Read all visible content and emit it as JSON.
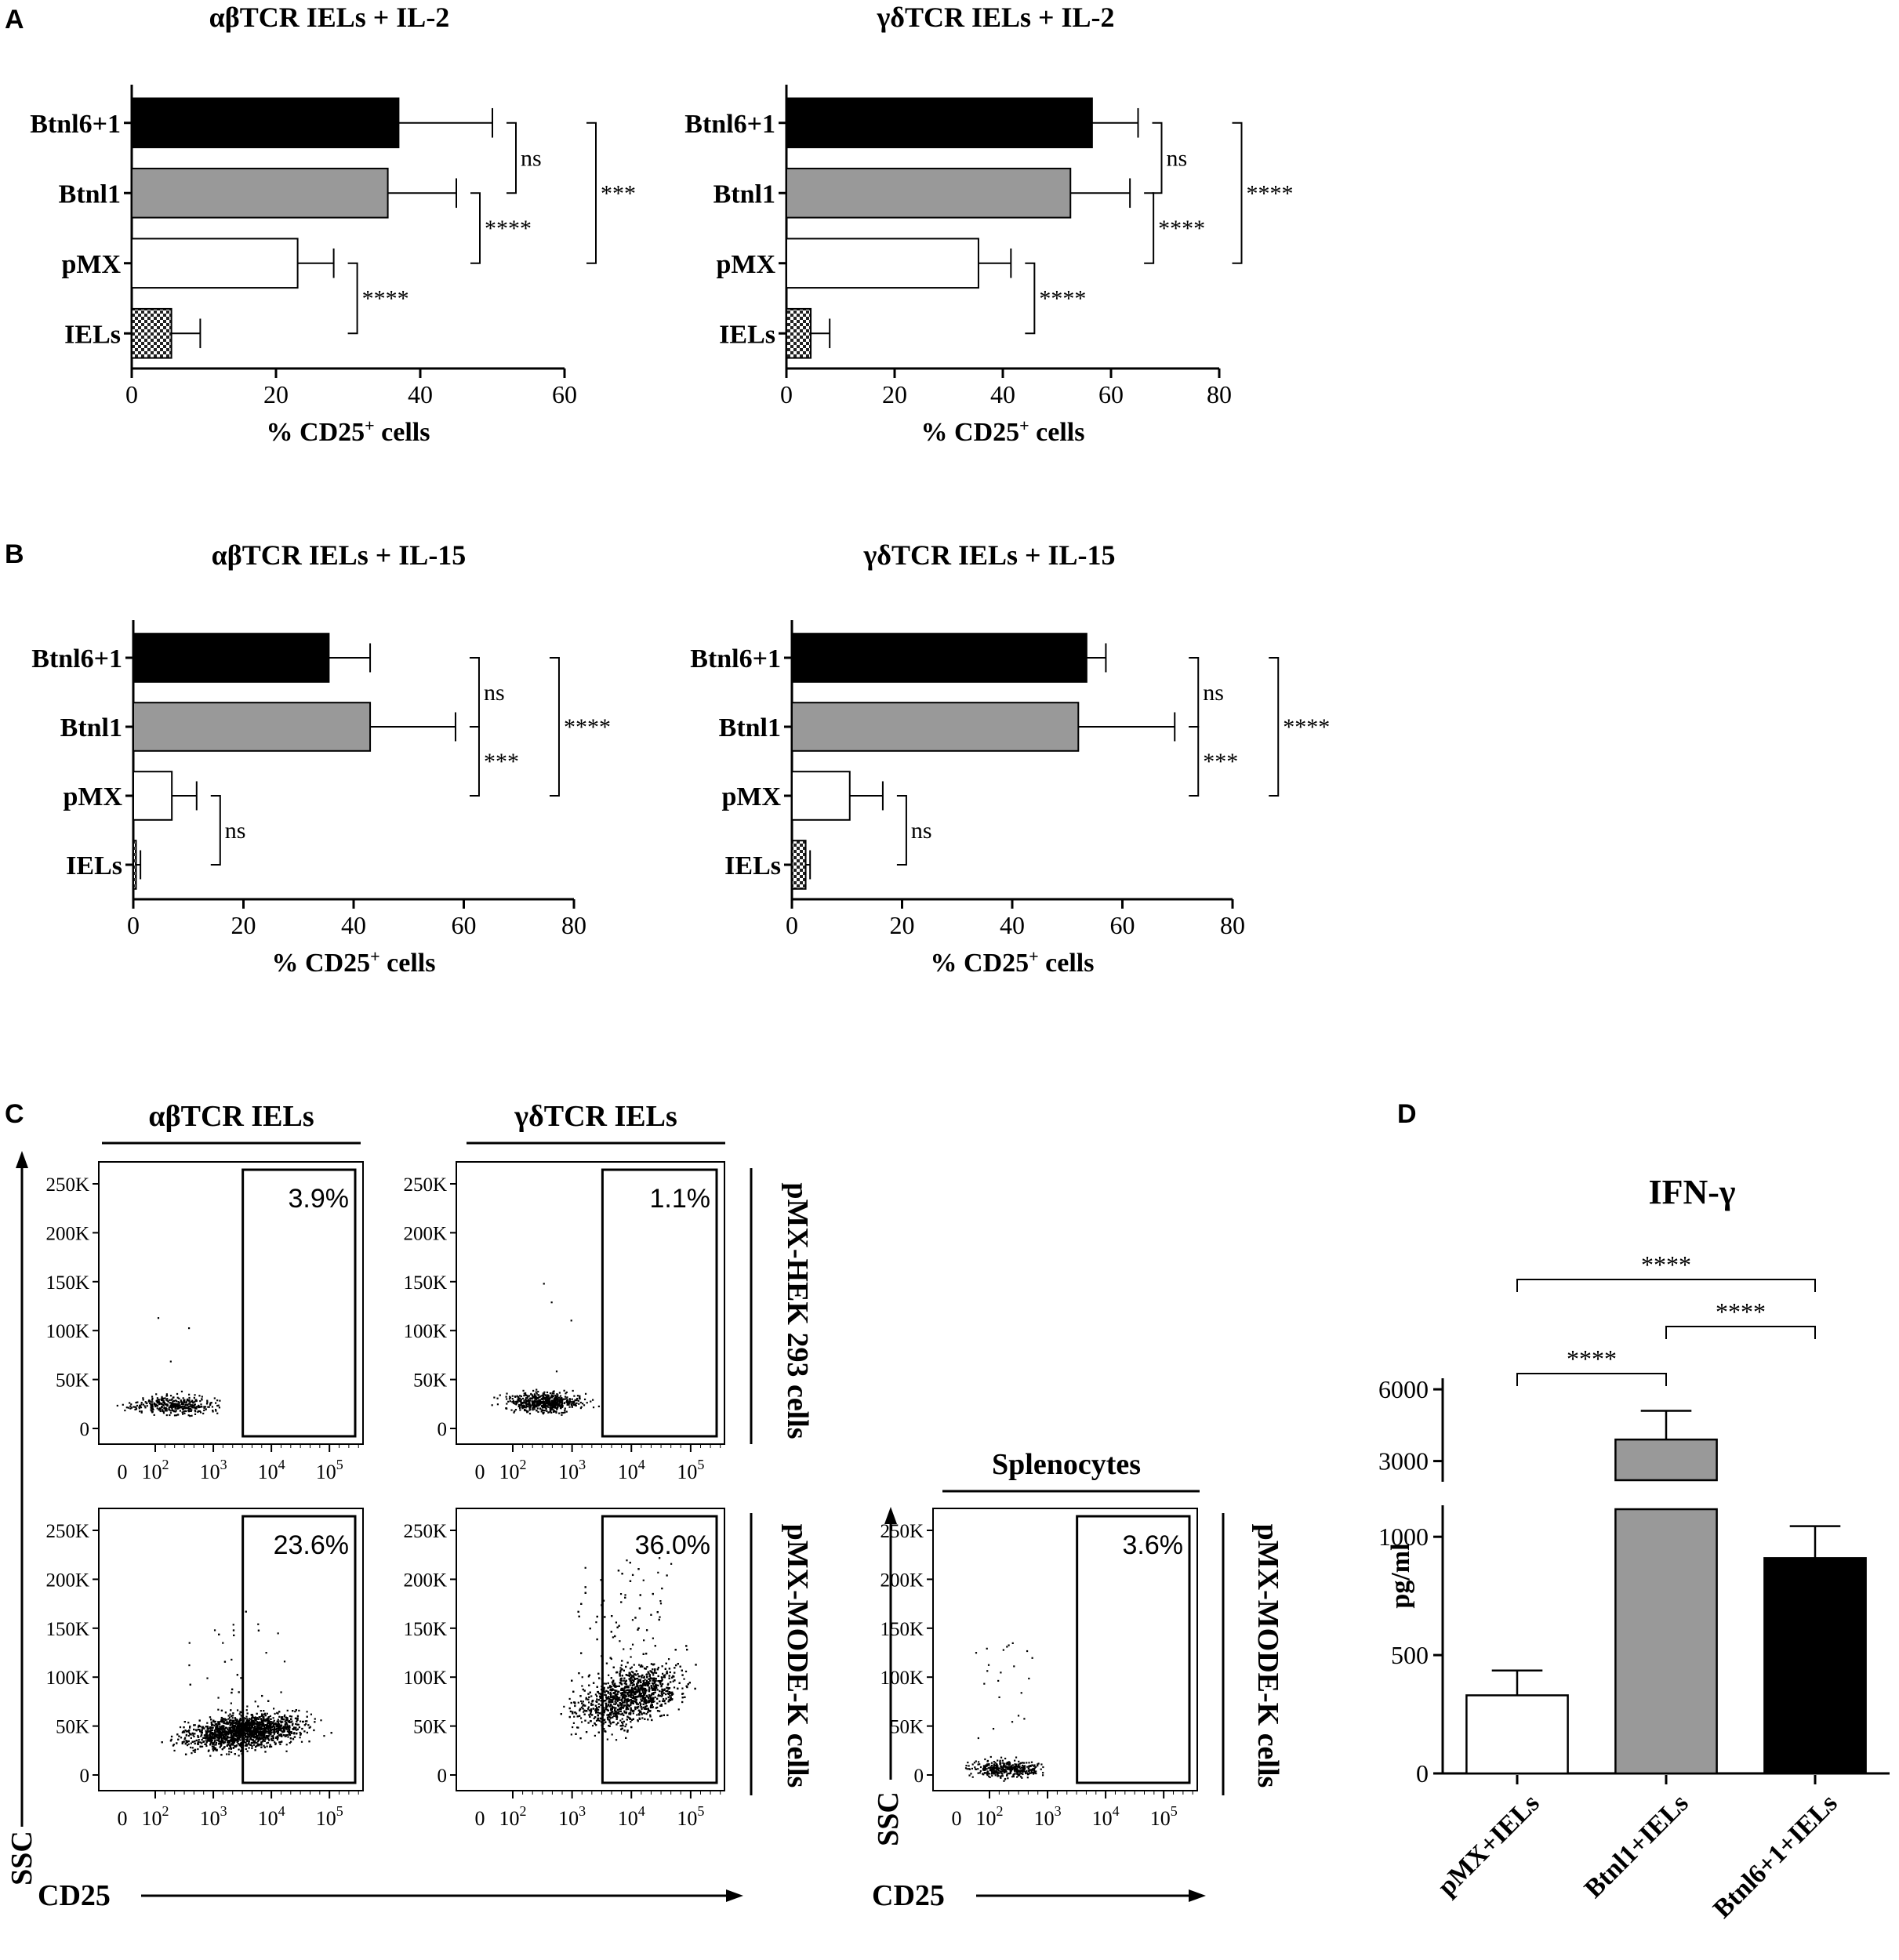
{
  "panel_letters": {
    "a": "A",
    "b": "B",
    "c": "C",
    "d": "D"
  },
  "chart_data": [
    {
      "id": "A1",
      "type": "bar",
      "orientation": "horizontal",
      "title": "αβTCR IELs + IL-2",
      "categories": [
        "Btnl6+1",
        "Btnl1",
        "pMX",
        "IELs"
      ],
      "values": [
        37,
        35.5,
        23,
        5.5
      ],
      "errors": [
        13,
        9.5,
        5,
        4
      ],
      "fills": [
        "black",
        "gray",
        "white",
        "hatched"
      ],
      "xlim": [
        0,
        60
      ],
      "xticks": [
        0,
        20,
        40,
        60
      ],
      "xlabel": "% CD25",
      "xlabel_sup": "+",
      "xlabel_tail": " cells",
      "comparisons": [
        {
          "from": 0,
          "to": 1,
          "label": "ns"
        },
        {
          "from": 1,
          "to": 2,
          "label": "****"
        },
        {
          "from": 2,
          "to": 3,
          "label": "****"
        },
        {
          "from": 0,
          "to": 2,
          "label": "***"
        }
      ]
    },
    {
      "id": "A2",
      "type": "bar",
      "orientation": "horizontal",
      "title": "γδTCR IELs + IL-2",
      "categories": [
        "Btnl6+1",
        "Btnl1",
        "pMX",
        "IELs"
      ],
      "values": [
        56.5,
        52.5,
        35.5,
        4.5
      ],
      "errors": [
        8.5,
        11,
        6,
        3.5
      ],
      "fills": [
        "black",
        "gray",
        "white",
        "hatched"
      ],
      "xlim": [
        0,
        80
      ],
      "xticks": [
        0,
        20,
        40,
        60,
        80
      ],
      "xlabel": "% CD25",
      "xlabel_sup": "+",
      "xlabel_tail": " cells",
      "comparisons": [
        {
          "from": 0,
          "to": 1,
          "label": "ns"
        },
        {
          "from": 1,
          "to": 2,
          "label": "****"
        },
        {
          "from": 2,
          "to": 3,
          "label": "****"
        },
        {
          "from": 0,
          "to": 2,
          "label": "****"
        }
      ]
    },
    {
      "id": "B1",
      "type": "bar",
      "orientation": "horizontal",
      "title": "αβTCR IELs + IL-15",
      "categories": [
        "Btnl6+1",
        "Btnl1",
        "pMX",
        "IELs"
      ],
      "values": [
        35.5,
        43,
        7,
        0.5
      ],
      "errors": [
        7.5,
        15.5,
        4.5,
        0.8
      ],
      "fills": [
        "black",
        "gray",
        "white",
        "hatched"
      ],
      "xlim": [
        0,
        80
      ],
      "xticks": [
        0,
        20,
        40,
        60,
        80
      ],
      "xlabel": "% CD25",
      "xlabel_sup": "+",
      "xlabel_tail": " cells",
      "comparisons": [
        {
          "from": 0,
          "to": 1,
          "label": "ns"
        },
        {
          "from": 1,
          "to": 2,
          "label": "***"
        },
        {
          "from": 2,
          "to": 3,
          "label": "ns"
        },
        {
          "from": 0,
          "to": 2,
          "label": "****"
        }
      ]
    },
    {
      "id": "B2",
      "type": "bar",
      "orientation": "horizontal",
      "title": "γδTCR IELs + IL-15",
      "categories": [
        "Btnl6+1",
        "Btnl1",
        "pMX",
        "IELs"
      ],
      "values": [
        53.5,
        52,
        10.5,
        2.5
      ],
      "errors": [
        3.5,
        17.5,
        6,
        0.8
      ],
      "fills": [
        "black",
        "gray",
        "white",
        "hatched"
      ],
      "xlim": [
        0,
        80
      ],
      "xticks": [
        0,
        20,
        40,
        60,
        80
      ],
      "xlabel": "% CD25",
      "xlabel_sup": "+",
      "xlabel_tail": " cells",
      "comparisons": [
        {
          "from": 0,
          "to": 1,
          "label": "ns"
        },
        {
          "from": 1,
          "to": 2,
          "label": "***"
        },
        {
          "from": 2,
          "to": 3,
          "label": "ns"
        },
        {
          "from": 0,
          "to": 2,
          "label": "****"
        }
      ]
    },
    {
      "id": "D",
      "type": "bar",
      "orientation": "vertical",
      "title": "IFN-γ",
      "ylabel": "pg/ml",
      "categories": [
        "pMX+IELs",
        "Btnl1+IELs",
        "Btnl6+1+IELs"
      ],
      "values": [
        330,
        3900,
        910
      ],
      "errors": [
        105,
        1200,
        135
      ],
      "fills": [
        "white",
        "gray",
        "black"
      ],
      "y_axis_broken": true,
      "y_lower_ticks": [
        0,
        500,
        1000
      ],
      "y_upper_ticks": [
        3000,
        6000
      ],
      "y_lower_tick_labels": [
        "0",
        "500",
        "1000"
      ],
      "y_upper_tick_labels": [
        "3000",
        "6000"
      ],
      "comparisons": [
        {
          "from": 0,
          "to": 1,
          "label": "****"
        },
        {
          "from": 1,
          "to": 2,
          "label": "****"
        },
        {
          "from": 0,
          "to": 2,
          "label": "****"
        }
      ]
    }
  ],
  "flow": {
    "column_headers": [
      "αβTCR IELs",
      "γδTCR IELs"
    ],
    "row_labels": [
      "pMX-HEK 293 cells",
      "pMX-MODE-K cells"
    ],
    "spleno_header": "Splenocytes",
    "spleno_row_label": "pMX-MODE-K cells",
    "y_axis_label": "SSC",
    "x_axis_label": "CD25",
    "y_ticks": [
      "250K",
      "200K",
      "150K",
      "100K",
      "50K",
      "0"
    ],
    "x_tick_base": "10",
    "x_tick_exponents": [
      "2",
      "3",
      "4",
      "5"
    ],
    "x_tick_zero": "0",
    "gate_percentages": {
      "ab_hek": "3.9%",
      "gd_hek": "1.1%",
      "ab_mode": "23.6%",
      "gd_mode": "36.0%",
      "spleno": "3.6%"
    }
  }
}
